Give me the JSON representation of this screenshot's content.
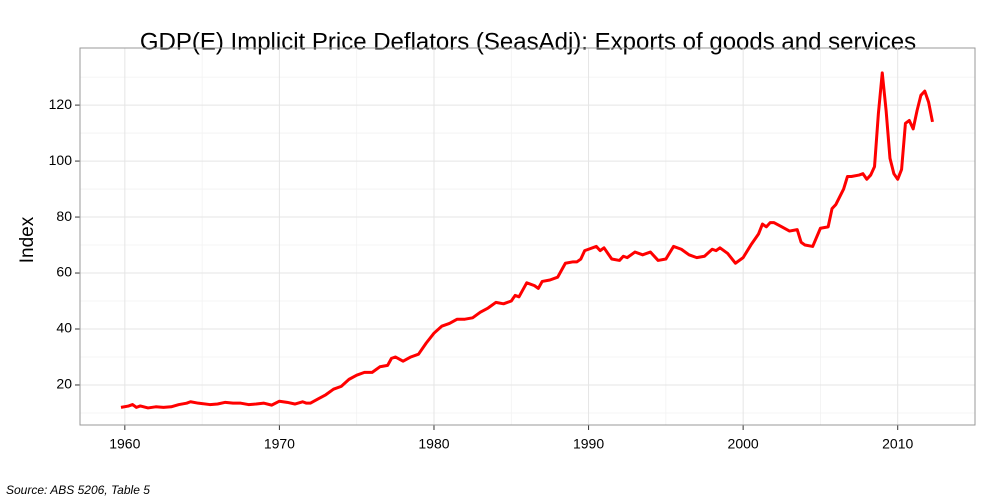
{
  "chart_data": {
    "type": "line",
    "title": "GDP(E) Implicit Price Deflators (SeasAdj): Exports of goods and services",
    "y_label": "Index",
    "source": "Source: ABS 5206, Table 5",
    "xlim": [
      1957.1,
      2015
    ],
    "ylim": [
      5.7,
      140.4
    ],
    "xticks": [
      1960,
      1970,
      1980,
      1990,
      2000,
      2010
    ],
    "yticks": [
      20,
      40,
      60,
      80,
      100,
      120
    ],
    "grid": true,
    "series": [
      {
        "color": "#ff0000",
        "x": [
          1959.75,
          1960.25,
          1960.5,
          1960.75,
          1961,
          1961.5,
          1962,
          1962.5,
          1963,
          1963.5,
          1964,
          1964.25,
          1964.75,
          1965.5,
          1966,
          1966.5,
          1967,
          1967.5,
          1968,
          1968.5,
          1969,
          1969.5,
          1970,
          1970.5,
          1971,
          1971.5,
          1971.75,
          1972,
          1972.5,
          1973,
          1973.5,
          1974,
          1974.5,
          1975,
          1975.5,
          1976,
          1976.5,
          1977,
          1977.25,
          1977.5,
          1978,
          1978.5,
          1979,
          1979.5,
          1980,
          1980.5,
          1981,
          1981.5,
          1982,
          1982.5,
          1983,
          1983.5,
          1984,
          1984.5,
          1985,
          1985.25,
          1985.5,
          1986,
          1986.5,
          1986.75,
          1987,
          1987.5,
          1988,
          1988.5,
          1989,
          1989.25,
          1989.5,
          1989.75,
          1990,
          1990.5,
          1990.75,
          1991,
          1991.5,
          1992,
          1992.25,
          1992.5,
          1993,
          1993.5,
          1994,
          1994.5,
          1995,
          1995.5,
          1996,
          1996.5,
          1997,
          1997.5,
          1998,
          1998.25,
          1998.5,
          1999,
          1999.5,
          2000,
          2000.5,
          2001,
          2001.25,
          2001.5,
          2001.75,
          2002,
          2002.5,
          2003,
          2003.5,
          2003.75,
          2004,
          2004.5,
          2005,
          2005.5,
          2005.75,
          2006,
          2006.5,
          2006.75,
          2007,
          2007.5,
          2007.75,
          2008,
          2008.25,
          2008.5,
          2008.75,
          2009,
          2009.25,
          2009.5,
          2009.75,
          2010,
          2010.25,
          2010.5,
          2010.75,
          2011,
          2011.25,
          2011.5,
          2011.75,
          2012,
          2012.25
        ],
        "values": [
          12,
          12.5,
          13,
          12,
          12.5,
          11.8,
          12.2,
          12,
          12.2,
          13,
          13.5,
          14,
          13.5,
          13,
          13.2,
          13.8,
          13.5,
          13.5,
          13,
          13.2,
          13.5,
          12.8,
          14.2,
          13.8,
          13.2,
          14,
          13.5,
          13.5,
          15,
          16.5,
          18.5,
          19.5,
          22,
          23.5,
          24.5,
          24.5,
          26.5,
          27,
          29.5,
          30,
          28.5,
          30,
          31,
          35,
          38.5,
          41,
          42,
          43.5,
          43.5,
          44,
          46,
          47.5,
          49.5,
          49,
          50,
          52,
          51.5,
          56.5,
          55.5,
          54.5,
          57,
          57.5,
          58.5,
          63.5,
          64,
          64,
          65,
          68,
          68.5,
          69.5,
          68,
          69,
          65,
          64.5,
          66,
          65.5,
          67.5,
          66.5,
          67.5,
          64.5,
          65,
          69.5,
          68.5,
          66.5,
          65.5,
          66,
          68.5,
          68,
          69,
          67,
          63.5,
          65.5,
          70,
          74,
          77.5,
          76.5,
          78,
          78,
          76.5,
          75,
          75.5,
          71,
          70,
          69.5,
          76,
          76.5,
          83,
          84.5,
          90,
          94.5,
          94.5,
          95,
          95.5,
          93.5,
          95,
          98,
          117,
          131.5,
          118,
          101,
          95.5,
          93.5,
          97,
          113.5,
          114.5,
          111.5,
          118,
          123.5,
          125,
          121,
          114
        ]
      }
    ]
  }
}
